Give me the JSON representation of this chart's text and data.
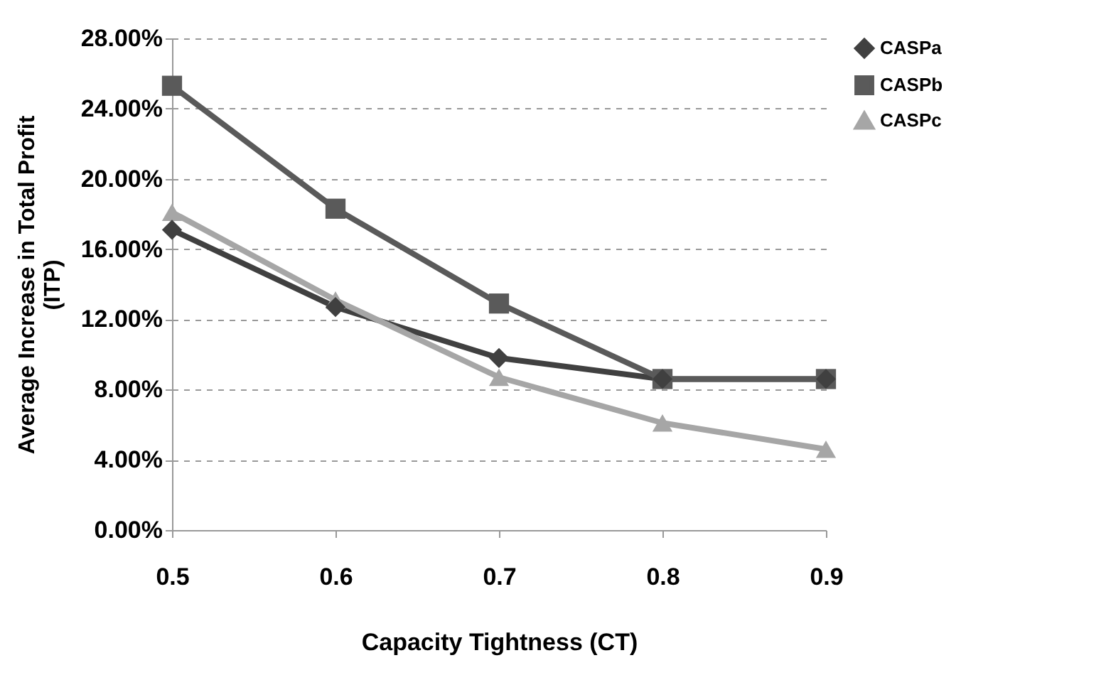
{
  "chart_data": {
    "type": "line",
    "xlabel": "Capacity Tightness (CT)",
    "ylabel": "Average Increase in Total Profit (ITP)",
    "x": [
      0.5,
      0.6,
      0.7,
      0.8,
      0.9
    ],
    "series": [
      {
        "name": "CASPa",
        "color": "#404040",
        "marker": "diamond",
        "values": [
          17.1,
          12.7,
          9.8,
          8.6,
          8.6
        ]
      },
      {
        "name": "CASPb",
        "color": "#5a5a5a",
        "marker": "square",
        "values": [
          25.3,
          18.3,
          12.9,
          8.6,
          8.6
        ]
      },
      {
        "name": "CASPc",
        "color": "#a6a6a6",
        "marker": "triangle",
        "values": [
          18.1,
          13.1,
          8.7,
          6.1,
          4.6
        ]
      }
    ],
    "xlim": [
      0.5,
      0.9
    ],
    "xticks": [
      0.5,
      0.6,
      0.7,
      0.8,
      0.9
    ],
    "ylim": [
      0,
      28
    ],
    "yticks": [
      {
        "value": 0,
        "label": "0.00%"
      },
      {
        "value": 4,
        "label": "4.00%"
      },
      {
        "value": 8,
        "label": "8.00%"
      },
      {
        "value": 12,
        "label": "12.00%"
      },
      {
        "value": 16,
        "label": "16.00%"
      },
      {
        "value": 20,
        "label": "20.00%"
      },
      {
        "value": 24,
        "label": "24.00%"
      },
      {
        "value": 28,
        "label": "28.00%"
      }
    ],
    "grid": "y",
    "legend": "right"
  }
}
